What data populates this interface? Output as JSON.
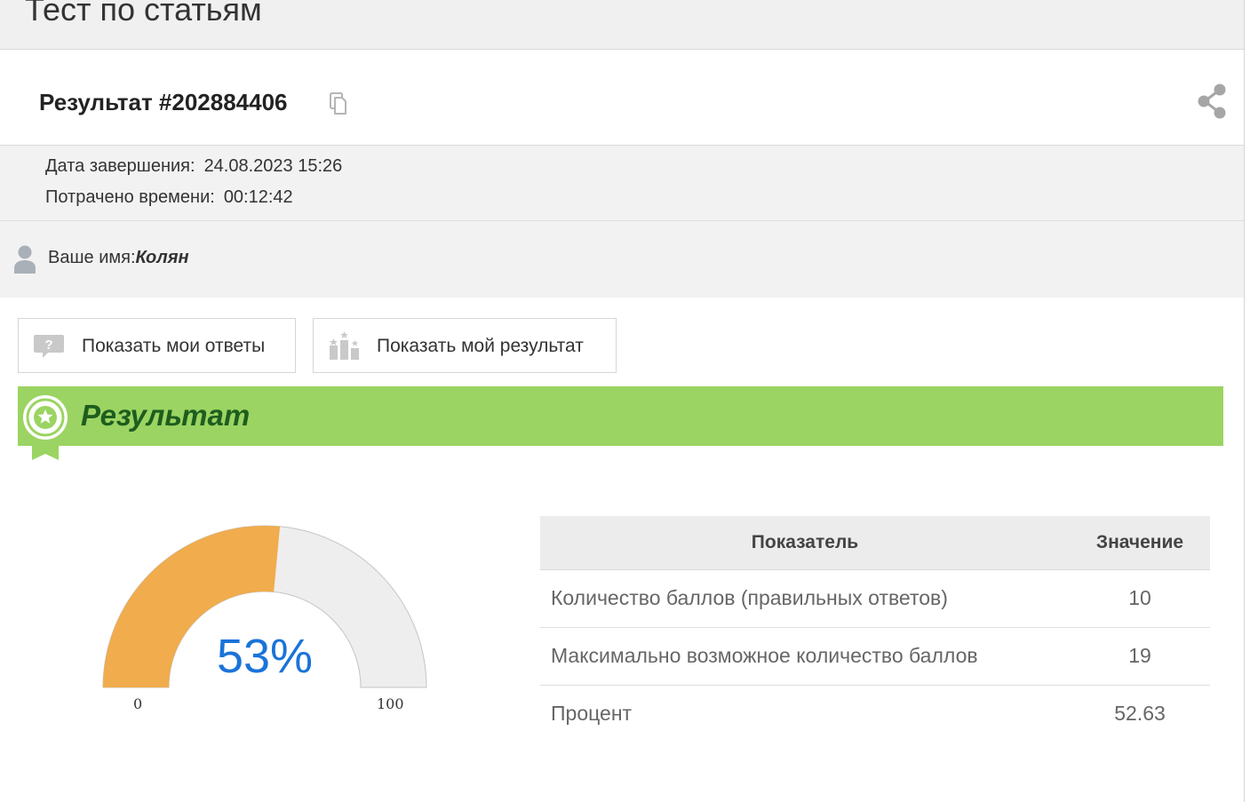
{
  "header": {
    "title": "Тест по статьям"
  },
  "result": {
    "title": "Результат #202884406"
  },
  "meta": {
    "finish_label": "Дата завершения:",
    "finish_value": "24.08.2023 15:26",
    "time_label": "Потрачено времени:",
    "time_value": "00:12:42"
  },
  "user": {
    "label": "Ваше имя:",
    "name": "Колян"
  },
  "buttons": {
    "show_answers": "Показать мои ответы",
    "show_result": "Показать мой результат"
  },
  "banner": {
    "title": "Результат"
  },
  "gauge": {
    "percent": 53,
    "label": "53%",
    "min": "0",
    "max": "100"
  },
  "table": {
    "headers": [
      "Показатель",
      "Значение"
    ],
    "rows": [
      {
        "label": "Количество баллов (правильных ответов)",
        "value": "10"
      },
      {
        "label": "Максимально возможное количество баллов",
        "value": "19"
      },
      {
        "label": "Процент",
        "value": "52.63"
      }
    ]
  },
  "colors": {
    "accent_green": "#9bd462",
    "banner_text": "#1e5d1e",
    "gauge_fill": "#f0ac4d",
    "gauge_empty": "#eeeeee",
    "percent_text": "#1a73d9"
  }
}
